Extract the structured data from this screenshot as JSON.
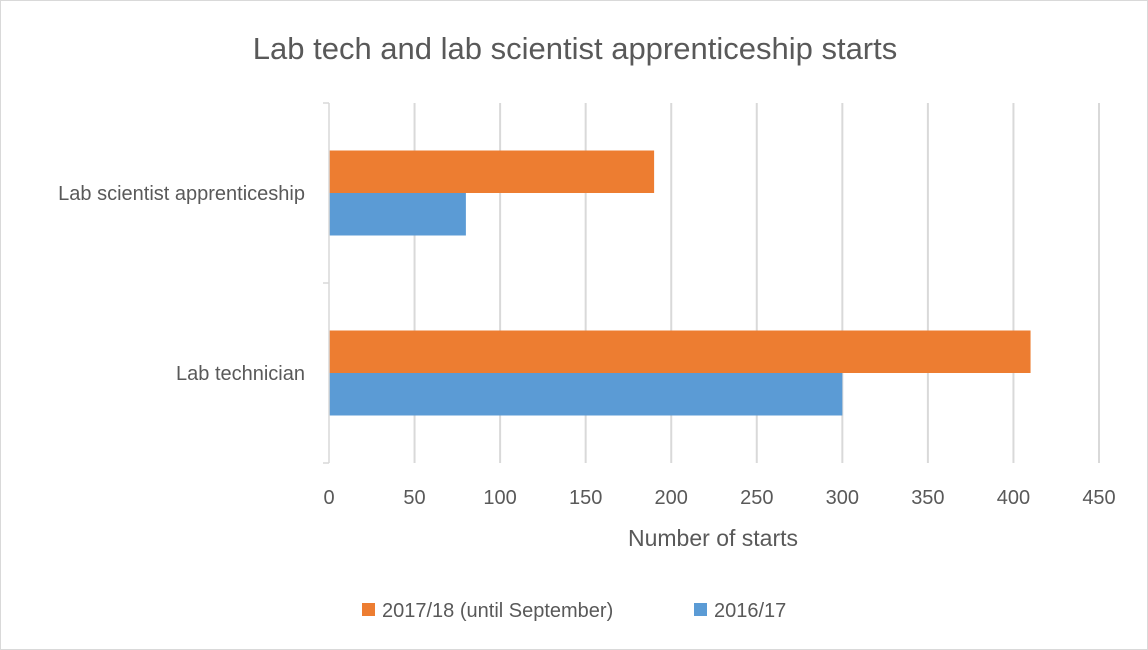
{
  "chart_data": {
    "type": "bar",
    "orientation": "horizontal",
    "title": "Lab tech and lab scientist apprenticeship starts",
    "xlabel": "Number of starts",
    "ylabel": "",
    "categories": [
      "Lab technician",
      "Lab scientist apprenticeship"
    ],
    "series": [
      {
        "name": "2017/18 (until September)",
        "color": "#ED7D31",
        "values": [
          410,
          190
        ]
      },
      {
        "name": "2016/17",
        "color": "#5B9BD5",
        "values": [
          300,
          80
        ]
      }
    ],
    "xlim": [
      0,
      450
    ],
    "xticks": [
      "0",
      "50",
      "100",
      "150",
      "200",
      "250",
      "300",
      "350",
      "400",
      "450"
    ],
    "grid": true,
    "legend": "bottom"
  }
}
